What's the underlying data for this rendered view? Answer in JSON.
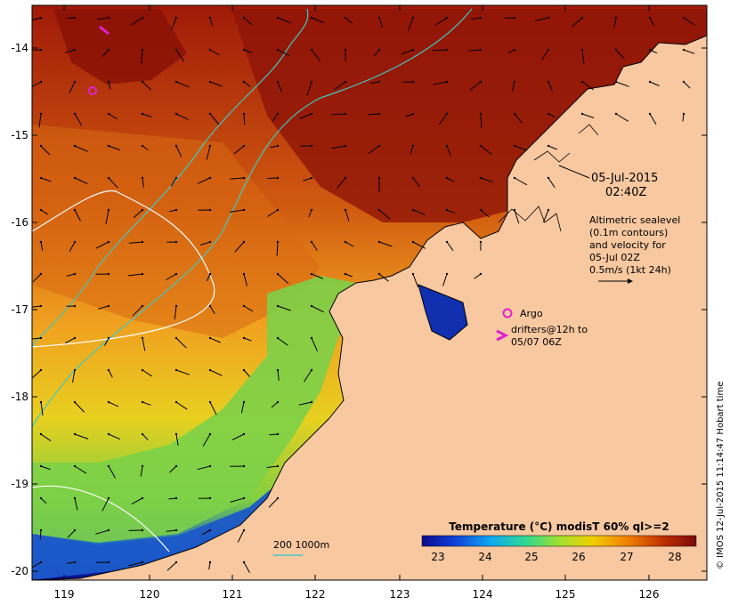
{
  "map": {
    "date": "05-Jul-2015",
    "time": "02:40Z",
    "altimetry": {
      "lines": [
        "Altimetric sealevel",
        "(0.1m contours)",
        "and velocity for",
        "05-Jul 02Z",
        "0.5m/s (1kt 24h)"
      ]
    },
    "argo_label": "Argo",
    "drifter_lines": [
      "drifters@12h to",
      "05/07 06Z"
    ],
    "depth_label": "200  1000m",
    "side_credit": "© IMOS 12-Jul-2015 11:14:47 Hobart time",
    "colorbar": {
      "title": "Temperature (°C) modisT 60% ql>=2",
      "ticks": [
        "23",
        "24",
        "25",
        "26",
        "27",
        "28"
      ],
      "min": 22.6,
      "max": 28.5,
      "stops": [
        "#0a0a8c",
        "#1040d8",
        "#10a8f0",
        "#30d890",
        "#a0e030",
        "#f0d000",
        "#f08000",
        "#c03000",
        "#7a0a0a"
      ]
    },
    "lon_ticks": [
      "119",
      "120",
      "121",
      "122",
      "123",
      "124",
      "125",
      "126"
    ],
    "lat_ticks": [
      "-14",
      "-15",
      "-16",
      "-17",
      "-18",
      "-19",
      "-20"
    ],
    "colors": {
      "land": "#f8c8a0",
      "argo": "#e020d0",
      "depth_200": "#40c8c0",
      "depth_1000": "#ffffff"
    }
  }
}
